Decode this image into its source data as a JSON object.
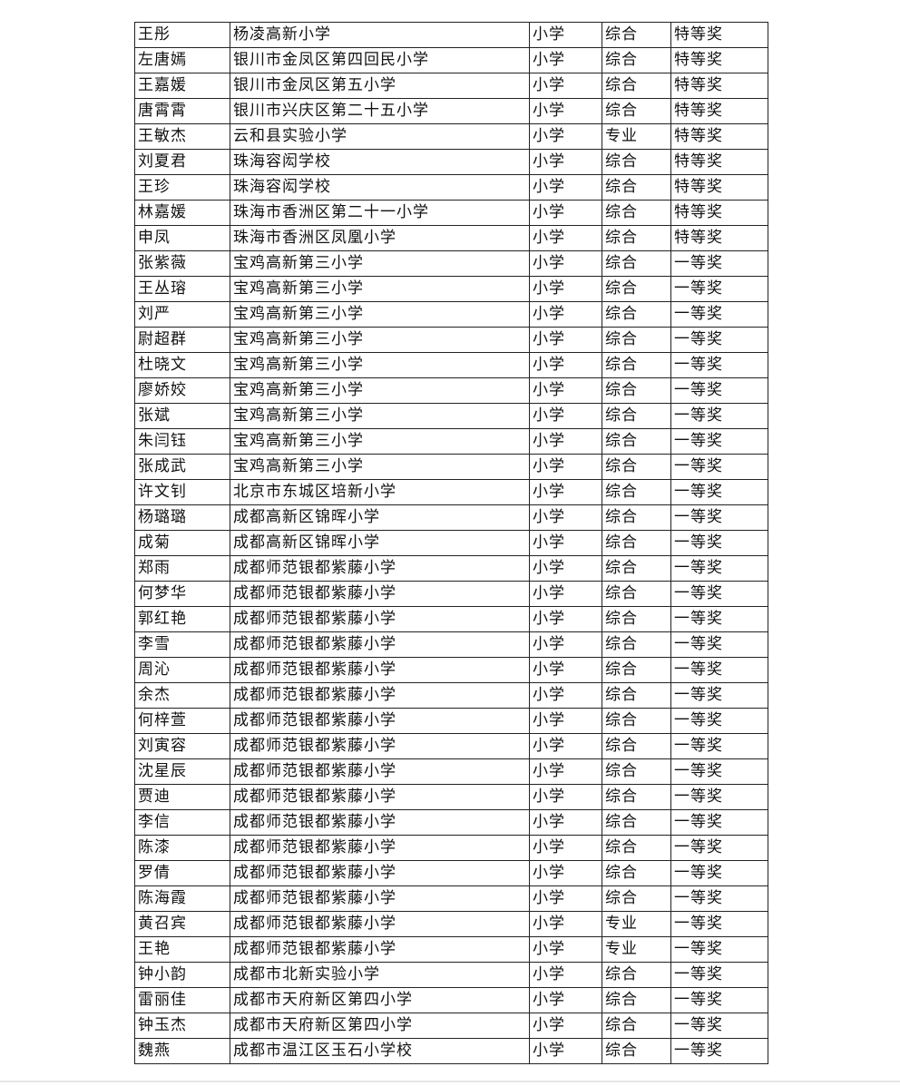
{
  "rows": [
    [
      "王彤",
      "杨凌高新小学",
      "小学",
      "综合",
      "特等奖"
    ],
    [
      "左唐嫣",
      "银川市金凤区第四回民小学",
      "小学",
      "综合",
      "特等奖"
    ],
    [
      "王嘉媛",
      "银川市金凤区第五小学",
      "小学",
      "综合",
      "特等奖"
    ],
    [
      "唐霄霄",
      "银川市兴庆区第二十五小学",
      "小学",
      "综合",
      "特等奖"
    ],
    [
      "王敏杰",
      "云和县实验小学",
      "小学",
      "专业",
      "特等奖"
    ],
    [
      "刘夏君",
      "珠海容闳学校",
      "小学",
      "综合",
      "特等奖"
    ],
    [
      "王珍",
      "珠海容闳学校",
      "小学",
      "综合",
      "特等奖"
    ],
    [
      "林嘉媛",
      "珠海市香洲区第二十一小学",
      "小学",
      "综合",
      "特等奖"
    ],
    [
      "申凤",
      "珠海市香洲区凤凰小学",
      "小学",
      "综合",
      "特等奖"
    ],
    [
      "张紫薇",
      "宝鸡高新第三小学",
      "小学",
      "综合",
      "一等奖"
    ],
    [
      "王丛瑢",
      "宝鸡高新第三小学",
      "小学",
      "综合",
      "一等奖"
    ],
    [
      "刘严",
      "宝鸡高新第三小学",
      "小学",
      "综合",
      "一等奖"
    ],
    [
      "尉超群",
      "宝鸡高新第三小学",
      "小学",
      "综合",
      "一等奖"
    ],
    [
      "杜晓文",
      "宝鸡高新第三小学",
      "小学",
      "综合",
      "一等奖"
    ],
    [
      "廖娇姣",
      "宝鸡高新第三小学",
      "小学",
      "综合",
      "一等奖"
    ],
    [
      "张斌",
      "宝鸡高新第三小学",
      "小学",
      "综合",
      "一等奖"
    ],
    [
      "朱闫钰",
      "宝鸡高新第三小学",
      "小学",
      "综合",
      "一等奖"
    ],
    [
      "张成武",
      "宝鸡高新第三小学",
      "小学",
      "综合",
      "一等奖"
    ],
    [
      "许文钊",
      "北京市东城区培新小学",
      "小学",
      "综合",
      "一等奖"
    ],
    [
      "杨璐璐",
      "成都高新区锦晖小学",
      "小学",
      "综合",
      "一等奖"
    ],
    [
      "成菊",
      "成都高新区锦晖小学",
      "小学",
      "综合",
      "一等奖"
    ],
    [
      "郑雨",
      "成都师范银都紫藤小学",
      "小学",
      "综合",
      "一等奖"
    ],
    [
      "何梦华",
      "成都师范银都紫藤小学",
      "小学",
      "综合",
      "一等奖"
    ],
    [
      "郭红艳",
      "成都师范银都紫藤小学",
      "小学",
      "综合",
      "一等奖"
    ],
    [
      "李雪",
      "成都师范银都紫藤小学",
      "小学",
      "综合",
      "一等奖"
    ],
    [
      "周沁",
      "成都师范银都紫藤小学",
      "小学",
      "综合",
      "一等奖"
    ],
    [
      "余杰",
      "成都师范银都紫藤小学",
      "小学",
      "综合",
      "一等奖"
    ],
    [
      "何梓萱",
      "成都师范银都紫藤小学",
      "小学",
      "综合",
      "一等奖"
    ],
    [
      "刘寅容",
      "成都师范银都紫藤小学",
      "小学",
      "综合",
      "一等奖"
    ],
    [
      "沈星辰",
      "成都师范银都紫藤小学",
      "小学",
      "综合",
      "一等奖"
    ],
    [
      "贾迪",
      "成都师范银都紫藤小学",
      "小学",
      "综合",
      "一等奖"
    ],
    [
      "李信",
      "成都师范银都紫藤小学",
      "小学",
      "综合",
      "一等奖"
    ],
    [
      "陈漆",
      "成都师范银都紫藤小学",
      "小学",
      "综合",
      "一等奖"
    ],
    [
      "罗倩",
      "成都师范银都紫藤小学",
      "小学",
      "综合",
      "一等奖"
    ],
    [
      "陈海霞",
      "成都师范银都紫藤小学",
      "小学",
      "综合",
      "一等奖"
    ],
    [
      "黄召宾",
      "成都师范银都紫藤小学",
      "小学",
      "专业",
      "一等奖"
    ],
    [
      "王艳",
      "成都师范银都紫藤小学",
      "小学",
      "专业",
      "一等奖"
    ],
    [
      "钟小韵",
      "成都市北新实验小学",
      "小学",
      "综合",
      "一等奖"
    ],
    [
      "雷丽佳",
      "成都市天府新区第四小学",
      "小学",
      "综合",
      "一等奖"
    ],
    [
      "钟玉杰",
      "成都市天府新区第四小学",
      "小学",
      "综合",
      "一等奖"
    ],
    [
      "魏燕",
      "成都市温江区玉石小学校",
      "小学",
      "综合",
      "一等奖"
    ]
  ]
}
